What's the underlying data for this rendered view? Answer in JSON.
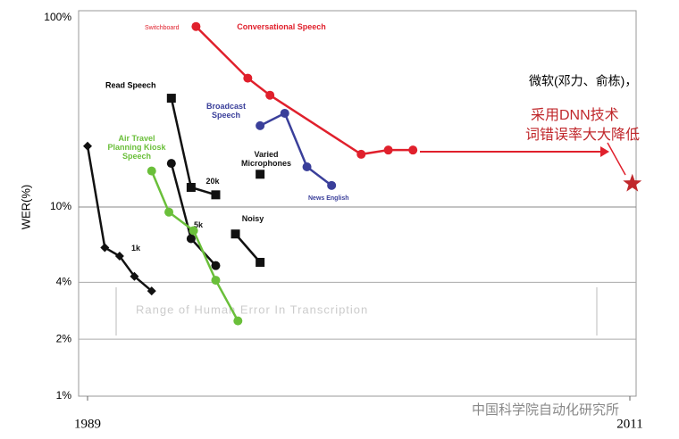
{
  "chart_data": {
    "type": "line",
    "log_scale": true,
    "y_label": "WER(%)",
    "xlim": [
      1988.7,
      2011.3
    ],
    "xticks": [
      1989,
      2011
    ],
    "ylim": [
      1,
      100
    ],
    "yticks": [
      {
        "value": 100,
        "label": "100%"
      },
      {
        "value": 10,
        "label": "10%"
      },
      {
        "value": 4,
        "label": "4%"
      },
      {
        "value": 2,
        "label": "2%"
      },
      {
        "value": 1,
        "label": "1%"
      }
    ],
    "series": [
      {
        "name": "1k",
        "color": "#111111",
        "marker": "diamond",
        "x": [
          1989,
          1989.7,
          1990.3,
          1990.9,
          1991.6
        ],
        "values": [
          21,
          6.1,
          5.5,
          4.3,
          3.6
        ]
      },
      {
        "name": "5k",
        "color": "#111111",
        "marker": "circle",
        "x": [
          1992.4,
          1993.2,
          1994.2
        ],
        "values": [
          17,
          6.8,
          4.9
        ]
      },
      {
        "name": "20k",
        "color": "#111111",
        "marker": "square",
        "x": [
          1992.4,
          1993.2,
          1994.2
        ],
        "values": [
          37.6,
          12.7,
          11.6
        ]
      },
      {
        "name": "Air Travel Planning Kiosk Speech",
        "color": "#6abf3a",
        "marker": "circle",
        "x": [
          1991.6,
          1992.3,
          1993.3,
          1994.2,
          1995.1
        ],
        "values": [
          15.5,
          9.4,
          7.5,
          4.1,
          2.5
        ]
      },
      {
        "name": "Varied Microphones",
        "color": "#111111",
        "marker": "square",
        "x": [
          1996
        ],
        "values": [
          14.9
        ]
      },
      {
        "name": "Noisy",
        "color": "#111111",
        "marker": "square",
        "x": [
          1995,
          1996
        ],
        "values": [
          7.2,
          5.1
        ]
      },
      {
        "name": "Broadcast Speech",
        "color": "#3a3f9a",
        "marker": "circle",
        "x": [
          1996,
          1997,
          1997.9,
          1998.9
        ],
        "values": [
          26.9,
          31.3,
          16.3,
          13
        ]
      },
      {
        "name": "Conversational Speech",
        "color": "#e0202c",
        "marker": "circle",
        "x": [
          1993.4,
          1995.5,
          1996.4,
          2000.1,
          2001.2,
          2002.2
        ],
        "values": [
          90,
          48,
          39,
          19,
          20,
          20
        ]
      }
    ],
    "star": {
      "x": 2011.1,
      "value": 13.3,
      "color": "#c0282c"
    },
    "annotations": [
      "Read Speech",
      "Switchboard",
      "News English",
      "Range of Human Error In Transcription"
    ],
    "note": [
      "微软(邓力、俞栋)，",
      "采用DNN技术",
      "词错误率大大降低"
    ],
    "watermark": "中国科学院自动化研究所"
  }
}
